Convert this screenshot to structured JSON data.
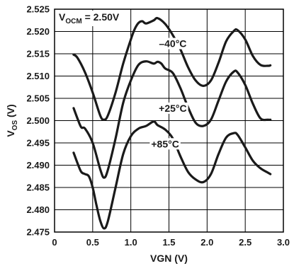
{
  "chart_data": {
    "type": "line",
    "annotation": {
      "prefix": "V",
      "sub": "OCM",
      "suffix": " = 2.50V"
    },
    "xlabel": "VGN (V)",
    "ylabel": {
      "prefix": "V",
      "sub": "OS",
      "suffix": " (V)"
    },
    "xlim": [
      0,
      3.0
    ],
    "ylim": [
      2.475,
      2.525
    ],
    "x_ticks": [
      "0",
      "0.5",
      "1.0",
      "1.5",
      "2.0",
      "2.5",
      "3.0"
    ],
    "y_ticks": [
      "2.475",
      "2.480",
      "2.485",
      "2.490",
      "2.495",
      "2.500",
      "2.505",
      "2.510",
      "2.515",
      "2.520",
      "2.525"
    ],
    "grid": true,
    "colors": {
      "line": "#1a1a1a",
      "grid": "#000000",
      "background": "#ffffff"
    },
    "series": [
      {
        "name": "–40°C",
        "x": [
          0.25,
          0.3,
          0.4,
          0.5,
          0.6,
          0.65,
          0.7,
          0.8,
          0.9,
          1.0,
          1.05,
          1.1,
          1.15,
          1.2,
          1.3,
          1.35,
          1.45,
          1.55,
          1.65,
          1.75,
          1.85,
          1.95,
          2.05,
          2.15,
          2.25,
          2.35,
          2.4,
          2.5,
          2.6,
          2.7,
          2.8,
          2.83
        ],
        "y": [
          2.5148,
          2.5141,
          2.5108,
          2.5063,
          2.5011,
          2.5002,
          2.5012,
          2.5063,
          2.5128,
          2.5182,
          2.5205,
          2.5219,
          2.5223,
          2.5218,
          2.5225,
          2.523,
          2.5217,
          2.5192,
          2.516,
          2.512,
          2.509,
          2.5078,
          2.509,
          2.513,
          2.5178,
          2.5201,
          2.5203,
          2.5182,
          2.5145,
          2.5125,
          2.5123,
          2.5124
        ]
      },
      {
        "name": "+25°C",
        "x": [
          0.25,
          0.3,
          0.35,
          0.4,
          0.5,
          0.6,
          0.65,
          0.7,
          0.8,
          0.9,
          1.0,
          1.1,
          1.2,
          1.3,
          1.35,
          1.4,
          1.45,
          1.55,
          1.65,
          1.75,
          1.85,
          1.95,
          2.05,
          2.15,
          2.25,
          2.35,
          2.4,
          2.5,
          2.6,
          2.7,
          2.8,
          2.83
        ],
        "y": [
          2.5028,
          2.5005,
          2.4985,
          2.4982,
          2.495,
          2.489,
          2.4872,
          2.489,
          2.496,
          2.504,
          2.509,
          2.5125,
          2.5133,
          2.5128,
          2.5132,
          2.5128,
          2.5117,
          2.5107,
          2.5073,
          2.503,
          2.4995,
          2.4988,
          2.5002,
          2.5045,
          2.5088,
          2.511,
          2.5108,
          2.508,
          2.5038,
          2.5005,
          2.5002,
          2.5002
        ]
      },
      {
        "name": "+85°C",
        "x": [
          0.25,
          0.3,
          0.35,
          0.4,
          0.45,
          0.5,
          0.55,
          0.6,
          0.65,
          0.7,
          0.8,
          0.9,
          1.0,
          1.1,
          1.2,
          1.3,
          1.35,
          1.45,
          1.55,
          1.65,
          1.75,
          1.85,
          1.95,
          2.05,
          2.15,
          2.25,
          2.35,
          2.4,
          2.5,
          2.6,
          2.7,
          2.8,
          2.83
        ],
        "y": [
          2.4928,
          2.4905,
          2.4885,
          2.488,
          2.4875,
          2.485,
          2.481,
          2.4775,
          2.4758,
          2.4775,
          2.485,
          2.4925,
          2.4965,
          2.4982,
          2.4988,
          2.4998,
          2.499,
          2.498,
          2.496,
          2.492,
          2.4885,
          2.4868,
          2.4862,
          2.488,
          2.4925,
          2.4962,
          2.4972,
          2.4968,
          2.494,
          2.491,
          2.4893,
          2.4883,
          2.488
        ]
      }
    ],
    "series_labels": [
      {
        "text": "–40°C",
        "x": 1.55,
        "y": 2.5165
      },
      {
        "text": "+25°C",
        "x": 1.55,
        "y": 2.502
      },
      {
        "text": "+85°C",
        "x": 1.45,
        "y": 2.494
      }
    ]
  }
}
